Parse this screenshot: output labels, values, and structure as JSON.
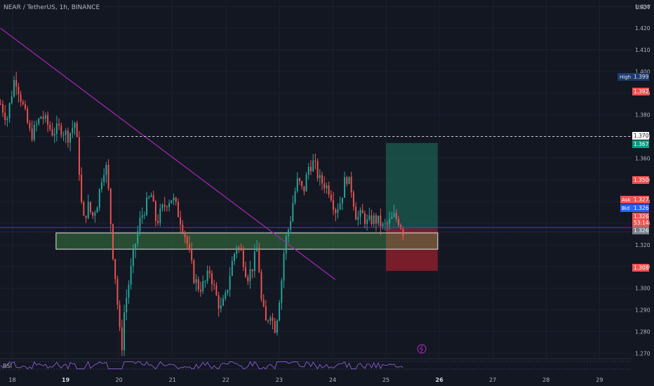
{
  "header": {
    "title": "NEAR / TetherUS, 1h, BINANCE"
  },
  "currency_label": "USDT",
  "rsi_label": "RSI",
  "colors": {
    "background": "#131722",
    "up": "#26a69a",
    "down": "#ef5350",
    "trendline": "#9c27b0",
    "zone_fill": "#4caf50",
    "target_fill": "#1b5e50",
    "stop_fill": "#8b1e2c"
  },
  "price_badges": {
    "high_label": "High",
    "high_value": "1.399",
    "red_top": "1.392",
    "dashed_level": "1.370",
    "green_level": "1.367",
    "red_level": "1.350",
    "ask_label": "Ask",
    "ask_value": "1.327",
    "bid_label": "Bid",
    "bid_value": "1.326",
    "last_value": "1.326",
    "countdown": "53:14",
    "current_gray": "1.326",
    "stop_level": "1.308"
  },
  "chart_data": {
    "type": "candlestick",
    "symbol": "NEAR / TetherUS",
    "interval": "1h",
    "exchange": "BINANCE",
    "y_ticks": [
      "1.270",
      "1.280",
      "1.290",
      "1.300",
      "1.310",
      "1.320",
      "1.330",
      "1.340",
      "1.350",
      "1.360",
      "1.370",
      "1.380",
      "1.390",
      "1.400",
      "1.410",
      "1.420",
      "1.430"
    ],
    "x_ticks": [
      "18",
      "19",
      "20",
      "21",
      "22",
      "23",
      "24",
      "25",
      "26",
      "27",
      "28",
      "29"
    ],
    "ylim": [
      1.2675,
      1.433
    ],
    "xlim": [
      17.77,
      29.6
    ],
    "close_path": [
      [
        17.78,
        1.385
      ],
      [
        17.9,
        1.378
      ],
      [
        18.05,
        1.398
      ],
      [
        18.2,
        1.384
      ],
      [
        18.35,
        1.37
      ],
      [
        18.55,
        1.38
      ],
      [
        18.75,
        1.372
      ],
      [
        18.9,
        1.374
      ],
      [
        19.05,
        1.37
      ],
      [
        19.18,
        1.377
      ],
      [
        19.25,
        1.356
      ],
      [
        19.32,
        1.33
      ],
      [
        19.42,
        1.338
      ],
      [
        19.5,
        1.333
      ],
      [
        19.6,
        1.34
      ],
      [
        19.68,
        1.352
      ],
      [
        19.75,
        1.358
      ],
      [
        19.82,
        1.34
      ],
      [
        19.87,
        1.32
      ],
      [
        19.95,
        1.3
      ],
      [
        20.0,
        1.282
      ],
      [
        20.05,
        1.272
      ],
      [
        20.1,
        1.29
      ],
      [
        20.2,
        1.305
      ],
      [
        20.3,
        1.32
      ],
      [
        20.4,
        1.332
      ],
      [
        20.5,
        1.338
      ],
      [
        20.6,
        1.343
      ],
      [
        20.7,
        1.33
      ],
      [
        20.8,
        1.336
      ],
      [
        20.9,
        1.34
      ],
      [
        21.0,
        1.342
      ],
      [
        21.1,
        1.335
      ],
      [
        21.2,
        1.328
      ],
      [
        21.3,
        1.318
      ],
      [
        21.4,
        1.305
      ],
      [
        21.5,
        1.3
      ],
      [
        21.6,
        1.302
      ],
      [
        21.7,
        1.308
      ],
      [
        21.8,
        1.298
      ],
      [
        21.9,
        1.29
      ],
      [
        22.0,
        1.296
      ],
      [
        22.1,
        1.31
      ],
      [
        22.2,
        1.32
      ],
      [
        22.3,
        1.316
      ],
      [
        22.4,
        1.305
      ],
      [
        22.5,
        1.31
      ],
      [
        22.6,
        1.32
      ],
      [
        22.65,
        1.296
      ],
      [
        22.75,
        1.284
      ],
      [
        22.85,
        1.29
      ],
      [
        22.9,
        1.28
      ],
      [
        22.95,
        1.285
      ],
      [
        23.05,
        1.305
      ],
      [
        23.1,
        1.32
      ],
      [
        23.2,
        1.33
      ],
      [
        23.27,
        1.342
      ],
      [
        23.35,
        1.35
      ],
      [
        23.45,
        1.344
      ],
      [
        23.55,
        1.356
      ],
      [
        23.65,
        1.358
      ],
      [
        23.75,
        1.35
      ],
      [
        23.85,
        1.348
      ],
      [
        23.95,
        1.345
      ],
      [
        24.05,
        1.336
      ],
      [
        24.15,
        1.34
      ],
      [
        24.25,
        1.352
      ],
      [
        24.35,
        1.346
      ],
      [
        24.45,
        1.332
      ],
      [
        24.55,
        1.334
      ],
      [
        24.65,
        1.33
      ],
      [
        24.75,
        1.332
      ],
      [
        24.85,
        1.331
      ],
      [
        24.95,
        1.328
      ],
      [
        25.05,
        1.33
      ],
      [
        25.15,
        1.333
      ],
      [
        25.25,
        1.331
      ],
      [
        25.32,
        1.326
      ]
    ],
    "candle_count": 180,
    "annotations": {
      "trendline": {
        "from": [
          17.78,
          1.42
        ],
        "to": [
          24.05,
          1.304
        ]
      },
      "support_zone": {
        "x0": 18.82,
        "x1": 25.97,
        "y0": 1.318,
        "y1": 1.3255
      },
      "long_position": {
        "x0": 25.0,
        "x1": 25.97,
        "entry": 1.3275,
        "target": 1.367,
        "stop": 1.308
      },
      "dashed_level": 1.37,
      "current_price": 1.326,
      "purple_line": 1.328
    }
  }
}
